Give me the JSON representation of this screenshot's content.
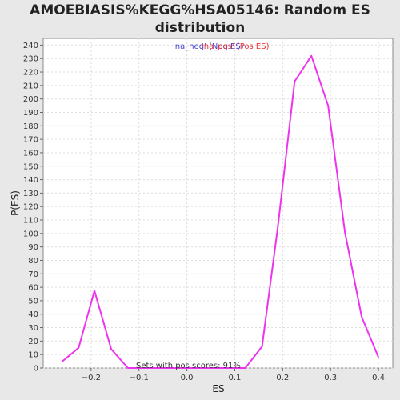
{
  "title_line1": "AMOEBIASIS%KEGG%HSA05146: Random ES",
  "title_line2": "distribution",
  "chart_data": {
    "type": "line",
    "title": "AMOEBIASIS%KEGG%HSA05146: Random ES distribution",
    "xlabel": "ES",
    "ylabel": "P(ES)",
    "xlim": [
      -0.3,
      0.43
    ],
    "ylim": [
      0,
      245
    ],
    "xticks": [
      -0.2,
      -0.1,
      0.0,
      0.1,
      0.2,
      0.3,
      0.4
    ],
    "xtick_labels": [
      "−0.2",
      "−0.1",
      "0.0",
      "0.1",
      "0.2",
      "0.3",
      "0.4"
    ],
    "yticks": [
      0,
      10,
      20,
      30,
      40,
      50,
      60,
      70,
      80,
      90,
      100,
      110,
      120,
      130,
      140,
      150,
      160,
      170,
      180,
      190,
      200,
      210,
      220,
      230,
      240
    ],
    "grid": true,
    "legend": [
      {
        "label": "'na_neg' (Neg ES)",
        "color": "#4444cc"
      },
      {
        "label": "'na_pos' (Pos ES)",
        "color": "#ee3333"
      }
    ],
    "series": [
      {
        "color": "#ee33ee",
        "x": [
          -0.26,
          -0.226,
          -0.193,
          -0.158,
          -0.123,
          0.122,
          0.157,
          0.19,
          0.225,
          0.26,
          0.295,
          0.33,
          0.365,
          0.4
        ],
        "y": [
          5,
          15,
          57.5,
          14,
          0,
          0,
          16,
          105,
          213,
          232,
          195,
          101,
          38,
          8
        ]
      }
    ],
    "annotation": "Sets with pos scores: 91%"
  }
}
